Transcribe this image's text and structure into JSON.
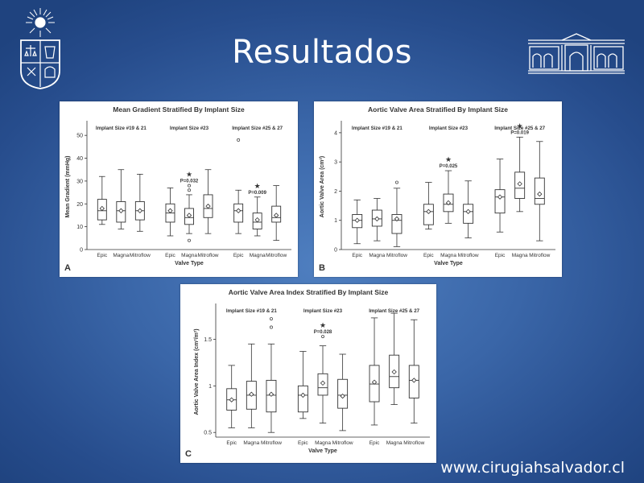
{
  "slide": {
    "title": "Resultados",
    "footer_url": "www.cirugiahsalvador.cl"
  },
  "colors": {
    "background": "#3a66a8",
    "text": "#ffffff",
    "chart_ink": "#333333"
  },
  "chart_data": [
    {
      "type": "box",
      "panel_label": "A",
      "title": "Mean Gradient Stratified By Implant Size",
      "ylabel": "Mean Gradient (mmHg)",
      "xlabel": "Valve Type",
      "ylim": [
        0,
        55
      ],
      "yticks": [
        0,
        10,
        20,
        30,
        40,
        50
      ],
      "categories": [
        "Epic",
        "Magna",
        "Mitroflow"
      ],
      "groups": [
        {
          "label": "Implant Size #19 & 21",
          "boxes": [
            {
              "category": "Epic",
              "whisker_low": 11,
              "q1": 13,
              "median": 17,
              "q3": 22,
              "whisker_high": 32,
              "mean": 18,
              "outliers": []
            },
            {
              "category": "Magna",
              "whisker_low": 9,
              "q1": 12,
              "median": 17,
              "q3": 21,
              "whisker_high": 35,
              "mean": 17,
              "outliers": []
            },
            {
              "category": "Mitroflow",
              "whisker_low": 8,
              "q1": 13,
              "median": 17,
              "q3": 21,
              "whisker_high": 33,
              "mean": 17,
              "outliers": []
            }
          ]
        },
        {
          "label": "Implant Size #23",
          "annotation": "P=0.032",
          "star_over": "Magna",
          "boxes": [
            {
              "category": "Epic",
              "whisker_low": 6,
              "q1": 12,
              "median": 16,
              "q3": 20,
              "whisker_high": 27,
              "mean": 17,
              "outliers": []
            },
            {
              "category": "Magna",
              "whisker_low": 7,
              "q1": 11,
              "median": 14,
              "q3": 18,
              "whisker_high": 24,
              "mean": 15,
              "outliers": [
                26,
                28,
                4
              ]
            },
            {
              "category": "Mitroflow",
              "whisker_low": 7,
              "q1": 14,
              "median": 18,
              "q3": 24,
              "whisker_high": 35,
              "mean": 19,
              "outliers": []
            }
          ]
        },
        {
          "label": "Implant Size #25 & 27",
          "annotation": "P=0.009",
          "star_over": "Magna",
          "boxes": [
            {
              "category": "Epic",
              "whisker_low": 7,
              "q1": 12,
              "median": 17,
              "q3": 20,
              "whisker_high": 26,
              "mean": 17,
              "outliers": [
                48
              ]
            },
            {
              "category": "Magna",
              "whisker_low": 6,
              "q1": 9,
              "median": 12,
              "q3": 16,
              "whisker_high": 23,
              "mean": 13,
              "outliers": []
            },
            {
              "category": "Mitroflow",
              "whisker_low": 4,
              "q1": 12,
              "median": 14,
              "q3": 19,
              "whisker_high": 28,
              "mean": 15,
              "outliers": []
            }
          ]
        }
      ]
    },
    {
      "type": "box",
      "panel_label": "B",
      "title": "Aortic Valve Area Stratified By Implant Size",
      "ylabel": "Aortic Valve Area (cm²)",
      "xlabel": "Valve Type",
      "ylim": [
        0,
        4.3
      ],
      "yticks": [
        0,
        1,
        2,
        3,
        4
      ],
      "categories": [
        "Epic",
        "Magna",
        "Mitroflow"
      ],
      "groups": [
        {
          "label": "Implant Size #19 & 21",
          "boxes": [
            {
              "category": "Epic",
              "whisker_low": 0.2,
              "q1": 0.75,
              "median": 1.0,
              "q3": 1.2,
              "whisker_high": 1.7,
              "mean": 1.0,
              "outliers": []
            },
            {
              "category": "Magna",
              "whisker_low": 0.3,
              "q1": 0.8,
              "median": 1.05,
              "q3": 1.35,
              "whisker_high": 1.75,
              "mean": 1.05,
              "outliers": []
            },
            {
              "category": "Mitroflow",
              "whisker_low": 0.1,
              "q1": 0.55,
              "median": 1.0,
              "q3": 1.2,
              "whisker_high": 2.1,
              "mean": 1.05,
              "outliers": [
                2.3
              ]
            }
          ]
        },
        {
          "label": "Implant Size #23",
          "annotation": "P=0.025",
          "star_over": "Magna",
          "boxes": [
            {
              "category": "Epic",
              "whisker_low": 0.7,
              "q1": 0.85,
              "median": 1.3,
              "q3": 1.55,
              "whisker_high": 2.3,
              "mean": 1.3,
              "outliers": []
            },
            {
              "category": "Magna",
              "whisker_low": 0.9,
              "q1": 1.3,
              "median": 1.55,
              "q3": 1.9,
              "whisker_high": 2.7,
              "mean": 1.6,
              "outliers": []
            },
            {
              "category": "Mitroflow",
              "whisker_low": 0.4,
              "q1": 0.9,
              "median": 1.3,
              "q3": 1.55,
              "whisker_high": 2.35,
              "mean": 1.3,
              "outliers": []
            }
          ]
        },
        {
          "label": "Implant Size #25 & 27",
          "annotation": "P=0.019",
          "star_over": "Magna",
          "boxes": [
            {
              "category": "Epic",
              "whisker_low": 0.6,
              "q1": 1.25,
              "median": 1.8,
              "q3": 2.05,
              "whisker_high": 3.1,
              "mean": 1.8,
              "outliers": []
            },
            {
              "category": "Magna",
              "whisker_low": 1.3,
              "q1": 1.75,
              "median": 2.1,
              "q3": 2.65,
              "whisker_high": 3.85,
              "mean": 2.25,
              "outliers": []
            },
            {
              "category": "Mitroflow",
              "whisker_low": 0.3,
              "q1": 1.55,
              "median": 1.75,
              "q3": 2.45,
              "whisker_high": 3.7,
              "mean": 1.9,
              "outliers": []
            }
          ]
        }
      ]
    },
    {
      "type": "box",
      "panel_label": "C",
      "title": "Aortic Valve Area Index Stratified By Implant Size",
      "ylabel": "Aortic Valve Area Index (cm²/m²)",
      "xlabel": "Valve Type",
      "ylim": [
        0.45,
        1.85
      ],
      "yticks": [
        0.5,
        1.0,
        1.5
      ],
      "categories": [
        "Epic",
        "Magna",
        "Mitroflow"
      ],
      "groups": [
        {
          "label": "Implant Size #19 & 21",
          "boxes": [
            {
              "category": "Epic",
              "whisker_low": 0.55,
              "q1": 0.74,
              "median": 0.85,
              "q3": 0.97,
              "whisker_high": 1.22,
              "mean": 0.85,
              "outliers": []
            },
            {
              "category": "Magna",
              "whisker_low": 0.55,
              "q1": 0.75,
              "median": 0.9,
              "q3": 1.05,
              "whisker_high": 1.45,
              "mean": 0.91,
              "outliers": []
            },
            {
              "category": "Mitroflow",
              "whisker_low": 0.5,
              "q1": 0.72,
              "median": 0.9,
              "q3": 1.06,
              "whisker_high": 1.45,
              "mean": 0.91,
              "outliers": [
                1.63,
                1.72
              ]
            }
          ]
        },
        {
          "label": "Implant Size #23",
          "annotation": "P=0.028",
          "star_over": "Magna",
          "boxes": [
            {
              "category": "Epic",
              "whisker_low": 0.65,
              "q1": 0.72,
              "median": 0.9,
              "q3": 1.0,
              "whisker_high": 1.37,
              "mean": 0.9,
              "outliers": []
            },
            {
              "category": "Magna",
              "whisker_low": 0.6,
              "q1": 0.9,
              "median": 0.98,
              "q3": 1.13,
              "whisker_high": 1.43,
              "mean": 1.03,
              "outliers": [
                1.53
              ]
            },
            {
              "category": "Mitroflow",
              "whisker_low": 0.52,
              "q1": 0.76,
              "median": 0.9,
              "q3": 1.07,
              "whisker_high": 1.34,
              "mean": 0.89,
              "outliers": []
            }
          ]
        },
        {
          "label": "Implant Size #25 & 27",
          "boxes": [
            {
              "category": "Epic",
              "whisker_low": 0.58,
              "q1": 0.83,
              "median": 1.02,
              "q3": 1.22,
              "whisker_high": 1.73,
              "mean": 1.04,
              "outliers": []
            },
            {
              "category": "Magna",
              "whisker_low": 0.8,
              "q1": 0.98,
              "median": 1.1,
              "q3": 1.33,
              "whisker_high": 1.78,
              "mean": 1.15,
              "outliers": []
            },
            {
              "category": "Mitroflow",
              "whisker_low": 0.6,
              "q1": 0.87,
              "median": 1.06,
              "q3": 1.22,
              "whisker_high": 1.71,
              "mean": 1.06,
              "outliers": []
            }
          ]
        }
      ]
    }
  ]
}
